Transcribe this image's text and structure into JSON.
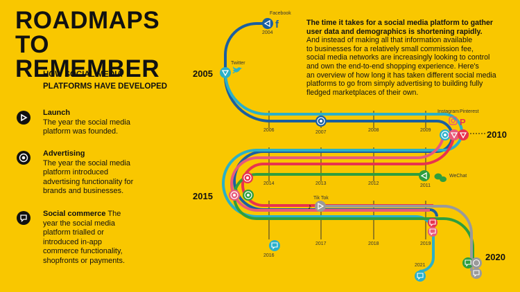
{
  "title_line1": "ROADMAPS",
  "title_line2": "TO REMEMBER",
  "subtitle_line1": "HOW SOCIAL MEDIA",
  "subtitle_line2": "PLATFORMS HAVE DEVELOPED",
  "legend": [
    {
      "name": "Launch",
      "desc_lines": [
        "The year the social media",
        "platform was founded."
      ]
    },
    {
      "name": "Advertising",
      "desc_lines": [
        "The year the social media",
        "platform introduced",
        "advertising functionality for",
        "brands and businesses."
      ]
    },
    {
      "name": "Social commerce",
      "desc_first": " The",
      "desc_lines": [
        "year the social media",
        "platform trialled or",
        "introduced in-app",
        "commerce functionality,",
        "shopfronts or payments."
      ]
    }
  ],
  "intro_lead_lines": [
    "The time it takes for a social media platform to gather",
    "user data and demographics is shortening rapidly."
  ],
  "intro_body_lines": [
    "And instead of making all that information available",
    "to businesses for a relatively small commission fee,",
    "social media networks are increasingly looking to control",
    "and own the end-to-end shopping experience. Here's",
    "an overview of how long it has taken different social media",
    "platforms to go from simply advertising to building fully",
    "fledged marketplaces of their own."
  ],
  "big_years": {
    "y2005": "2005",
    "y2010": "2010",
    "y2015": "2015",
    "y2020": "2020"
  },
  "row1_years": [
    "2006",
    "2007",
    "2008",
    "2009"
  ],
  "row2_years": [
    "2014",
    "2013",
    "2012",
    "2011"
  ],
  "row3_years": [
    "2016",
    "2017",
    "2018",
    "2019"
  ],
  "top_years": {
    "y2004": "2004",
    "y2021": "2021"
  },
  "platforms": {
    "facebook": {
      "name": "Facebook",
      "color": "#1b5fa0"
    },
    "twitter": {
      "name": "Twitter",
      "color": "#2bb0c8"
    },
    "instagram": {
      "name": "Instagram",
      "color": "#e85a7a"
    },
    "pinterest": {
      "name": "Pinterest",
      "color": "#e8344e"
    },
    "wechat": {
      "name": "WeChat",
      "color": "#2f9e3e"
    },
    "tiktok": {
      "name": "Tik Tok",
      "color": "#9a9a9a"
    }
  }
}
